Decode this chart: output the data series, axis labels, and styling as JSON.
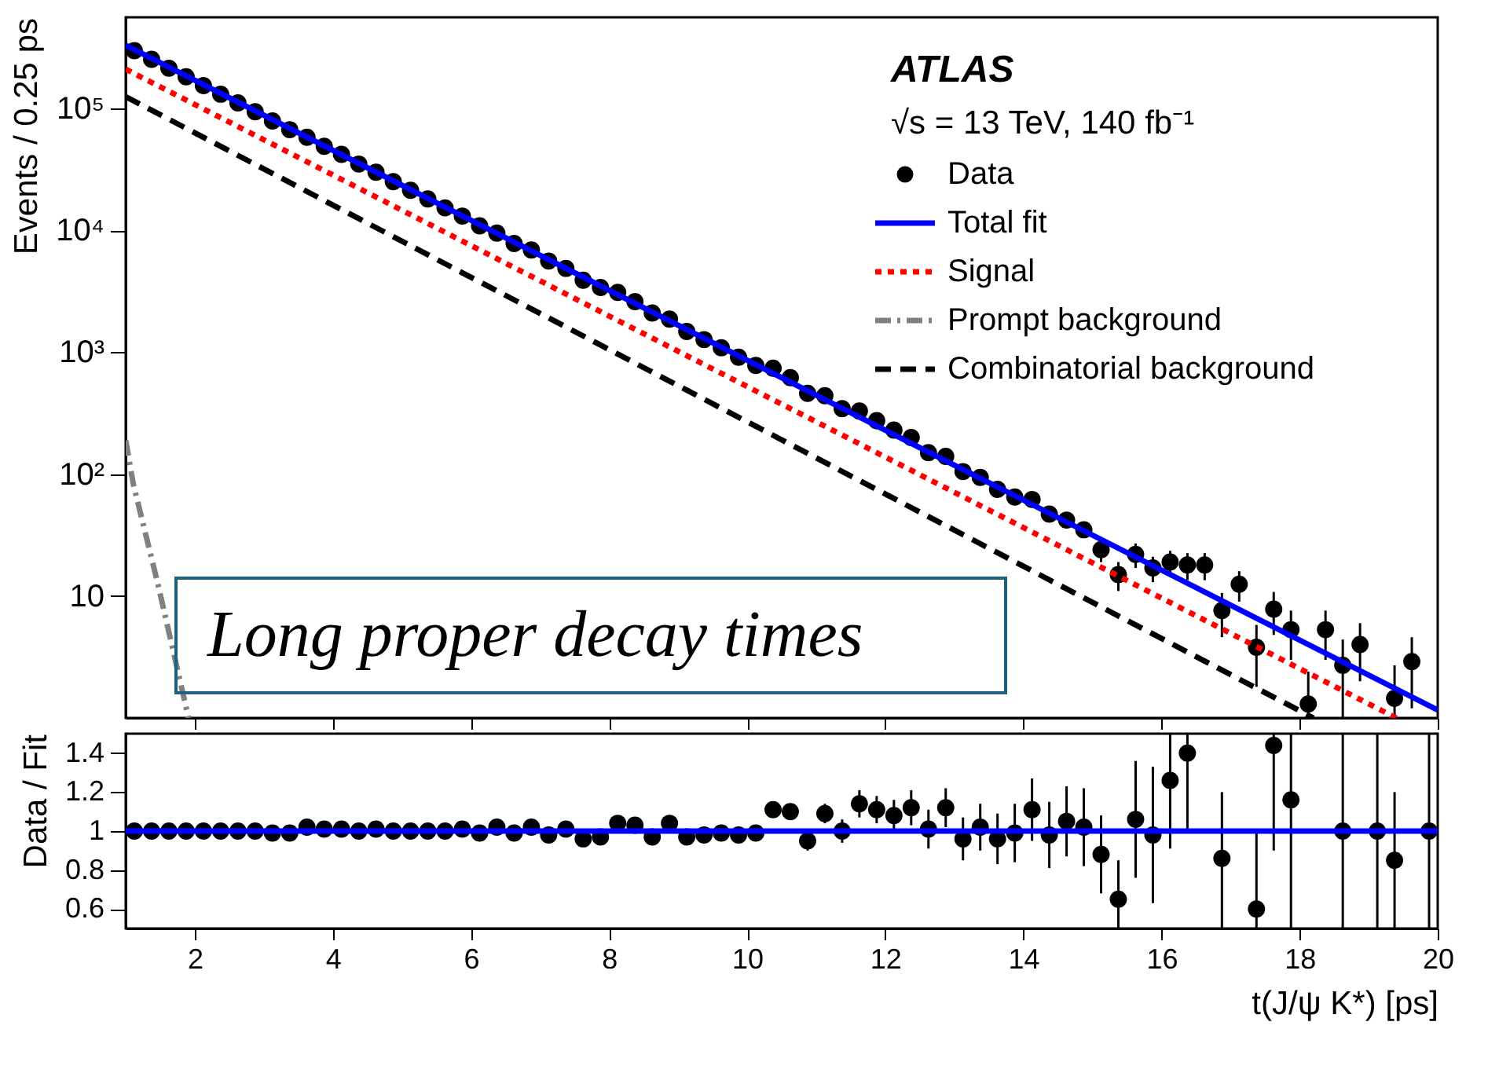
{
  "chart_data": [
    {
      "type": "scatter",
      "ylabel": "Events / 0.25 ps",
      "log": "y",
      "legend": "top right",
      "tick_labels": "y",
      "annotations": [
        "ATLAS",
        "√s = 13 TeV, 140 fb⁻¹",
        "Long proper decay times"
      ],
      "xlim": [
        1,
        20
      ],
      "xticks": [
        2,
        4,
        6,
        8,
        10,
        12,
        14,
        16,
        18,
        20
      ],
      "ylim": [
        1,
        560000
      ],
      "yticks": [
        10,
        {
          "value": 100,
          "label": "10²"
        },
        {
          "value": 1000,
          "label": "10³"
        },
        {
          "value": 10000,
          "label": "10⁴"
        },
        {
          "value": 100000,
          "label": "10⁵"
        }
      ],
      "series": [
        {
          "name": "Data",
          "marker": "circle",
          "color": "#000000",
          "x": [
            1.125,
            1.375,
            1.625,
            1.875,
            2.125,
            2.375,
            2.625,
            2.875,
            3.125,
            3.375,
            3.625,
            3.875,
            4.125,
            4.375,
            4.625,
            4.875,
            5.125,
            5.375,
            5.625,
            5.875,
            6.125,
            6.375,
            6.625,
            6.875,
            7.125,
            7.375,
            7.625,
            7.875,
            8.125,
            8.375,
            8.625,
            8.875,
            9.125,
            9.375,
            9.625,
            9.875,
            10.125,
            10.375,
            10.625,
            10.875,
            11.125,
            11.375,
            11.625,
            11.875,
            12.125,
            12.375,
            12.625,
            12.875,
            13.125,
            13.375,
            13.625,
            13.875,
            14.125,
            14.375,
            14.625,
            14.875,
            15.125,
            15.375,
            15.625,
            15.875,
            16.125,
            16.375,
            16.625,
            16.875,
            17.125,
            17.375,
            17.625,
            17.875,
            18.125,
            18.375,
            18.625,
            18.875,
            19.375,
            19.625
          ],
          "values": [
            298000,
            253000,
            214000,
            182000,
            154000,
            131000,
            111000,
            94000,
            79000,
            67000,
            58000,
            49000,
            42000,
            35000,
            30000,
            25100,
            21300,
            18100,
            15300,
            13100,
            10900,
            9500,
            7800,
            6900,
            5600,
            4880,
            3900,
            3400,
            3100,
            2600,
            2100,
            1870,
            1480,
            1270,
            1090,
            910,
            780,
            740,
            620,
            460,
            440,
            345,
            330,
            275,
            230,
            200,
            150,
            140,
            105,
            94,
            75,
            65,
            62,
            47,
            42,
            35,
            24,
            15,
            22,
            17,
            19,
            18,
            18,
            7.6,
            12.5,
            3.8,
            7.8,
            5.3,
            1.3,
            5.3,
            2.7,
            4,
            1.45,
            2.9
          ],
          "errors": [
            null,
            null,
            null,
            null,
            null,
            null,
            null,
            null,
            null,
            null,
            null,
            null,
            null,
            null,
            null,
            null,
            null,
            null,
            null,
            null,
            null,
            null,
            null,
            null,
            null,
            null,
            null,
            null,
            null,
            null,
            null,
            null,
            null,
            null,
            null,
            null,
            null,
            null,
            null,
            null,
            null,
            null,
            null,
            null,
            null,
            null,
            null,
            null,
            null,
            null,
            null,
            null,
            null,
            null,
            null,
            null,
            5,
            4,
            5,
            4,
            4.5,
            4.5,
            4.5,
            3,
            3.5,
            2,
            3,
            2.3,
            [
              1,
              2.4
            ],
            2.3,
            [
              1,
              4.4
            ],
            2,
            [
              1,
              2.7
            ],
            [
              1.2,
              4.6
            ]
          ]
        },
        {
          "name": "Total fit",
          "type": "line",
          "line_style": "solid",
          "color": "#0000ff",
          "x": [
            1,
            20
          ],
          "values": [
            330000,
            1.16
          ]
        },
        {
          "name": "Signal",
          "type": "line",
          "line_style": "dotted",
          "color": "#ff0000",
          "x": [
            1,
            19.4
          ],
          "values": [
            210000,
            1
          ]
        },
        {
          "name": "Prompt background",
          "type": "line",
          "line_style": "dashdot",
          "color": "#808080",
          "x": [
            1,
            1.11,
            1.46,
            1.91
          ],
          "values": [
            190,
            83,
            13,
            1
          ]
        },
        {
          "name": "Combinatorial background",
          "type": "line",
          "line_style": "dashed",
          "color": "#000000",
          "x": [
            1,
            18.2
          ],
          "values": [
            125000,
            1
          ]
        }
      ]
    },
    {
      "type": "scatter",
      "xlabel": "t(J/ψ K*) [ps]",
      "ylabel": "Data / Fit",
      "xlim": [
        1,
        20
      ],
      "xticks": [
        2,
        4,
        6,
        8,
        10,
        12,
        14,
        16,
        18,
        20
      ],
      "ylim": [
        0.5,
        1.5
      ],
      "yticks": [
        0.6,
        0.8,
        1,
        1.2,
        1.4
      ],
      "series": [
        {
          "marker": "circle",
          "color": "#000000",
          "x": [
            1.125,
            1.375,
            1.625,
            1.875,
            2.125,
            2.375,
            2.625,
            2.875,
            3.125,
            3.375,
            3.625,
            3.875,
            4.125,
            4.375,
            4.625,
            4.875,
            5.125,
            5.375,
            5.625,
            5.875,
            6.125,
            6.375,
            6.625,
            6.875,
            7.125,
            7.375,
            7.625,
            7.875,
            8.125,
            8.375,
            8.625,
            8.875,
            9.125,
            9.375,
            9.625,
            9.875,
            10.125,
            10.375,
            10.625,
            10.875,
            11.125,
            11.375,
            11.625,
            11.875,
            12.125,
            12.375,
            12.625,
            12.875,
            13.125,
            13.375,
            13.625,
            13.875,
            14.125,
            14.375,
            14.625,
            14.875,
            15.125,
            15.375,
            15.625,
            15.875,
            16.125,
            16.375,
            16.625,
            16.875,
            17.125,
            17.375,
            17.625,
            17.875,
            18.125,
            18.375,
            18.625,
            18.875,
            19.125,
            19.375,
            19.625,
            19.875
          ],
          "values": [
            1,
            1,
            1,
            1,
            1,
            1,
            1,
            1,
            0.99,
            0.99,
            1.02,
            1.01,
            1.01,
            1,
            1.01,
            1,
            1,
            1,
            1,
            1.01,
            0.99,
            1.02,
            0.99,
            1.02,
            0.98,
            1.01,
            0.96,
            0.97,
            1.04,
            1.03,
            0.97,
            1.04,
            0.97,
            0.98,
            0.99,
            0.98,
            0.99,
            1.11,
            1.1,
            0.95,
            1.09,
            1,
            1.14,
            1.11,
            1.08,
            1.12,
            1.01,
            1.12,
            0.96,
            1.02,
            0.96,
            0.99,
            1.11,
            0.98,
            1.05,
            1.02,
            0.88,
            0.65,
            1.06,
            0.98,
            1.26,
            1.4,
            null,
            0.86,
            null,
            0.6,
            1.44,
            1.16,
            null,
            null,
            1,
            null,
            1,
            0.85,
            null,
            1
          ],
          "errors": [
            null,
            null,
            null,
            null,
            null,
            null,
            null,
            null,
            null,
            null,
            null,
            null,
            null,
            null,
            null,
            null,
            null,
            null,
            null,
            null,
            null,
            null,
            null,
            null,
            null,
            null,
            null,
            null,
            null,
            null,
            null,
            null,
            null,
            null,
            null,
            null,
            0.03,
            0.04,
            0.04,
            0.05,
            0.05,
            0.06,
            0.07,
            0.07,
            0.08,
            0.09,
            0.1,
            0.1,
            0.11,
            0.12,
            0.13,
            0.15,
            0.16,
            0.17,
            0.18,
            0.2,
            0.2,
            [
              0.5,
              0.85
            ],
            0.3,
            0.35,
            0.35,
            [
              1,
              1.5
            ],
            null,
            [
              0.5,
              1.2
            ],
            null,
            [
              0.5,
              1
            ],
            [
              0.9,
              1.5
            ],
            [
              0.5,
              1.5
            ],
            null,
            null,
            [
              0.5,
              1.5
            ],
            null,
            [
              0.5,
              1.5
            ],
            [
              0.5,
              1.2
            ],
            null,
            [
              0.5,
              1.5
            ]
          ]
        },
        {
          "type": "line",
          "line_style": "solid",
          "color": "#0000ff",
          "x": [
            1,
            20
          ],
          "values": [
            1,
            1
          ]
        }
      ]
    }
  ]
}
